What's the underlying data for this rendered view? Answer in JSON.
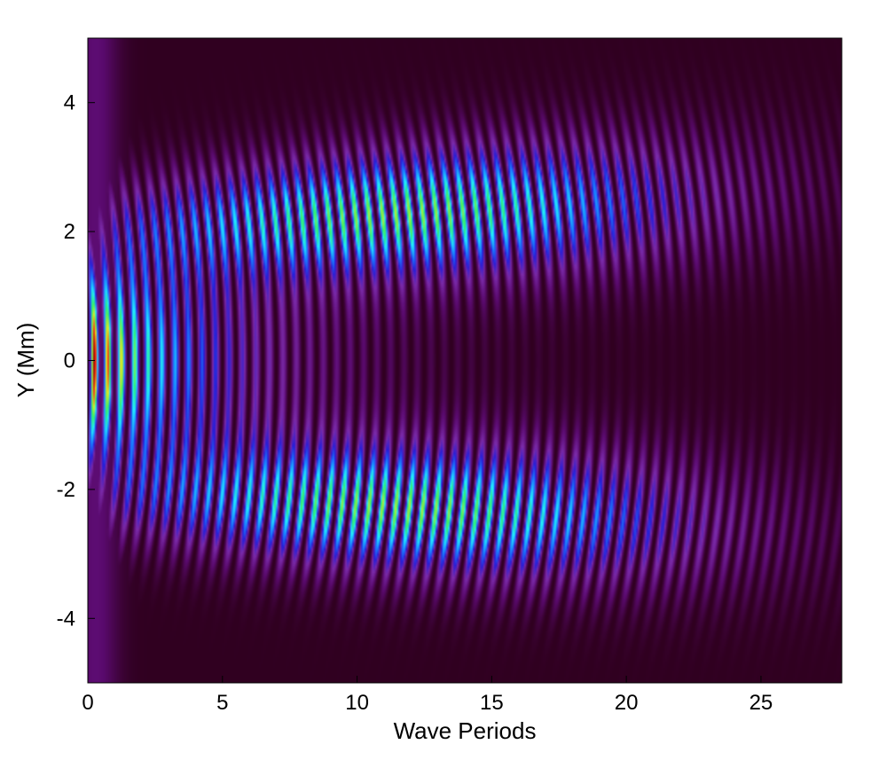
{
  "chart_data": {
    "type": "heatmap",
    "title": "",
    "xlabel": "Wave Periods",
    "ylabel": "Y (Mm)",
    "xlim": [
      0,
      28
    ],
    "ylim": [
      -5,
      5
    ],
    "x_ticks": [
      0,
      5,
      10,
      15,
      20,
      25
    ],
    "y_ticks": [
      -4,
      -2,
      0,
      2,
      4
    ],
    "x_tick_labels": [
      "0",
      "5",
      "10",
      "15",
      "20",
      "25"
    ],
    "y_tick_labels": [
      "-4",
      "-2",
      "0",
      "2",
      "4"
    ],
    "grid": false,
    "colormap": [
      "#300020",
      "#5a0a6e",
      "#7a2aa8",
      "#2a1ed6",
      "#1a78ff",
      "#22e6ff",
      "#30f070",
      "#e8e820",
      "#ff3010",
      "#8a0000"
    ],
    "pattern": {
      "fringe_spacing_periods": 0.5,
      "central_band_center": 0,
      "central_band_peak_x": 0.3,
      "central_band_fade_x": 11,
      "upper_lobe_center_y": 2.3,
      "lower_lobe_center_y": -2.3,
      "lobe_peak_x": 12,
      "lobe_extent_x": 28
    }
  }
}
